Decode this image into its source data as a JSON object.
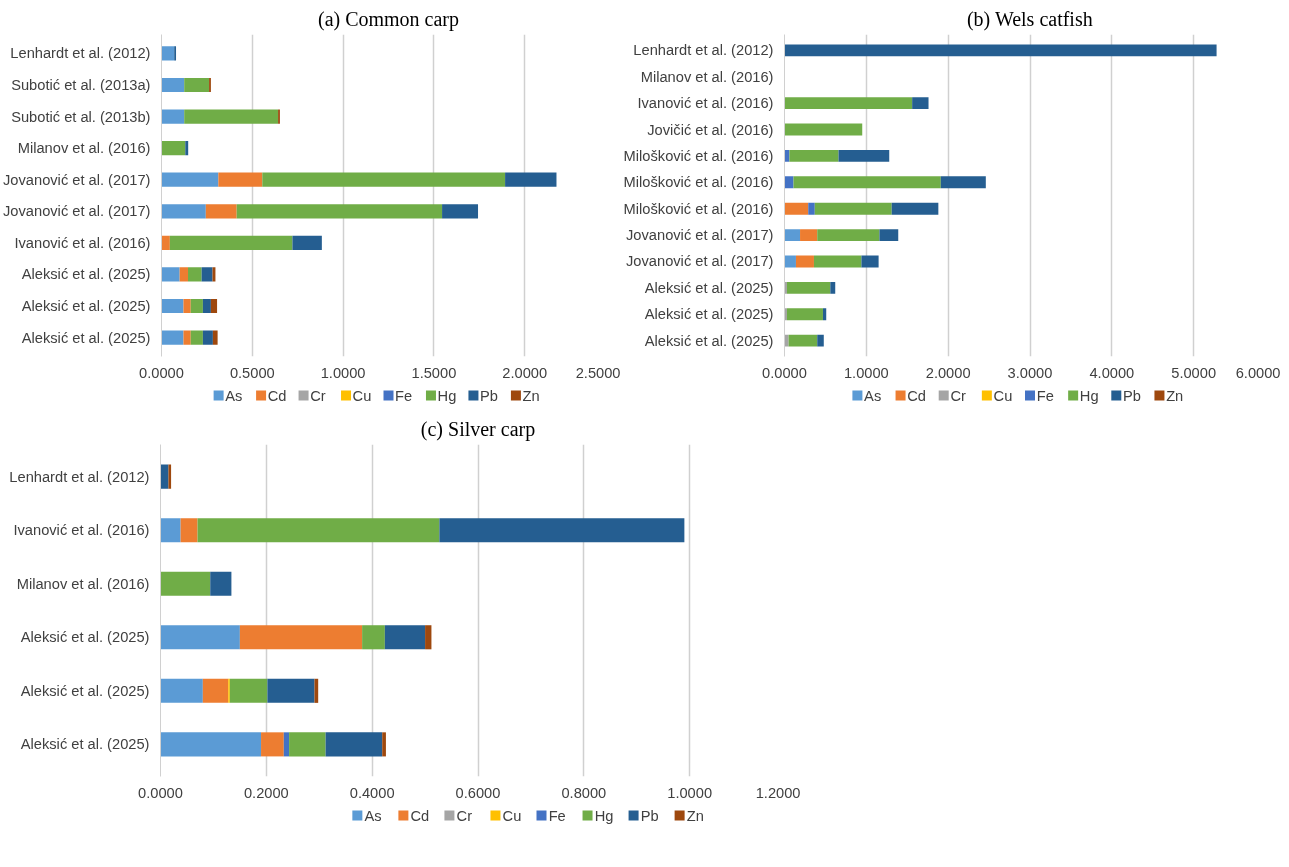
{
  "chart_data": [
    {
      "type": "bar",
      "orientation": "horizontal",
      "stacked": true,
      "title": "(a) Common carp",
      "categories": [
        "Lenhardt et al. (2012)",
        "Subotić et al. (2013a)",
        "Subotić et al. (2013b)",
        "Milanov et al. (2016)",
        "Jovanović et al. (2017)",
        "Jovanović et al. (2017)",
        "Ivanović et al. (2016)",
        "Aleksić et al. (2025)",
        "Aleksić et al. (2025)",
        "Aleksić et al. (2025)"
      ],
      "series": [
        {
          "name": "As",
          "color": "#5b9bd5",
          "values": [
            0.07,
            0.125,
            0.125,
            null,
            0.313,
            0.244,
            null,
            0.1,
            0.121,
            0.121
          ]
        },
        {
          "name": "Cd",
          "color": "#ed7d31",
          "values": [
            null,
            null,
            null,
            null,
            0.242,
            0.17,
            0.046,
            0.046,
            0.04,
            0.04
          ]
        },
        {
          "name": "Cr",
          "color": "#a5a5a5",
          "values": [
            null,
            null,
            null,
            null,
            null,
            null,
            null,
            null,
            null,
            null
          ]
        },
        {
          "name": "Cu",
          "color": "#ffc000",
          "values": [
            null,
            null,
            null,
            null,
            null,
            null,
            null,
            null,
            null,
            null
          ]
        },
        {
          "name": "Fe",
          "color": "#4472c4",
          "values": [
            null,
            null,
            null,
            null,
            null,
            null,
            null,
            null,
            null,
            null
          ]
        },
        {
          "name": "Hg",
          "color": "#70ad47",
          "values": [
            null,
            0.137,
            0.517,
            0.131,
            1.337,
            1.131,
            0.675,
            0.075,
            0.067,
            0.067
          ]
        },
        {
          "name": "Pb",
          "color": "#255e91",
          "values": [
            0.01,
            null,
            null,
            0.016,
            0.283,
            0.198,
            0.162,
            0.06,
            0.044,
            0.055
          ]
        },
        {
          "name": "Zn",
          "color": "#9e480e",
          "values": [
            null,
            0.01,
            0.01,
            null,
            null,
            null,
            null,
            0.016,
            0.034,
            0.026
          ]
        }
      ],
      "xlim": [
        0,
        2.5
      ],
      "xticks": [
        {
          "value": 0,
          "label": "0.0000"
        },
        {
          "value": 0.5,
          "label": "0.5000"
        },
        {
          "value": 1,
          "label": "1.0000"
        },
        {
          "value": 1.5,
          "label": "1.5000"
        },
        {
          "value": 2,
          "label": "2.0000"
        },
        {
          "value": 2.5,
          "label": "2.5000"
        }
      ],
      "grid": "x",
      "legend": "bottom"
    },
    {
      "type": "bar",
      "orientation": "horizontal",
      "stacked": true,
      "title": "(b) Wels catfish",
      "categories": [
        "Lenhardt et al. (2012)",
        "Milanov et al. (2016)",
        "Ivanović et al. (2016)",
        "Jovičić et al. (2016)",
        "Milošković et al. (2016)",
        "Milošković et al. (2016)",
        "Milošković et al. (2016)",
        "Jovanović et al. (2017)",
        "Jovanović et al. (2017)",
        "Aleksić et al. (2025)",
        "Aleksić et al. (2025)",
        "Aleksić et al. (2025)"
      ],
      "series": [
        {
          "name": "As",
          "color": "#5b9bd5",
          "values": [
            null,
            null,
            null,
            null,
            null,
            null,
            null,
            0.19,
            0.14,
            null,
            null,
            null
          ]
        },
        {
          "name": "Cd",
          "color": "#ed7d31",
          "values": [
            null,
            null,
            null,
            null,
            null,
            null,
            0.29,
            0.21,
            0.22,
            null,
            null,
            null
          ]
        },
        {
          "name": "Cr",
          "color": "#a5a5a5",
          "values": [
            null,
            null,
            null,
            null,
            null,
            null,
            null,
            null,
            null,
            0.03,
            0.03,
            0.05
          ]
        },
        {
          "name": "Cu",
          "color": "#ffc000",
          "values": [
            null,
            null,
            null,
            null,
            null,
            null,
            null,
            null,
            null,
            null,
            null,
            null
          ]
        },
        {
          "name": "Fe",
          "color": "#4472c4",
          "values": [
            null,
            null,
            null,
            null,
            0.06,
            0.11,
            0.08,
            null,
            null,
            null,
            null,
            null
          ]
        },
        {
          "name": "Hg",
          "color": "#70ad47",
          "values": [
            null,
            null,
            1.56,
            0.95,
            0.6,
            1.8,
            0.94,
            0.76,
            0.58,
            0.53,
            0.44,
            0.35
          ]
        },
        {
          "name": "Pb",
          "color": "#255e91",
          "values": [
            5.28,
            null,
            0.2,
            null,
            0.62,
            0.55,
            0.57,
            0.23,
            0.21,
            0.06,
            0.04,
            0.08
          ]
        },
        {
          "name": "Zn",
          "color": "#9e480e",
          "values": [
            null,
            null,
            null,
            null,
            null,
            null,
            null,
            null,
            null,
            null,
            null,
            null
          ]
        }
      ],
      "xlim": [
        0,
        6
      ],
      "xticks": [
        {
          "value": 0,
          "label": "0.0000"
        },
        {
          "value": 1,
          "label": "1.0000"
        },
        {
          "value": 2,
          "label": "2.0000"
        },
        {
          "value": 3,
          "label": "3.0000"
        },
        {
          "value": 4,
          "label": "4.0000"
        },
        {
          "value": 5,
          "label": "5.0000"
        },
        {
          "value": 6,
          "label": "6.0000"
        }
      ],
      "grid": "x",
      "legend": "bottom"
    },
    {
      "type": "bar",
      "orientation": "horizontal",
      "stacked": true,
      "title": "(c) Silver carp",
      "categories": [
        "Lenhardt et al. (2012)",
        "Ivanović et al. (2016)",
        "Milanov et al. (2016)",
        "Aleksić et al. (2025)",
        "Aleksić et al. (2025)",
        "Aleksić et al. (2025)"
      ],
      "series": [
        {
          "name": "As",
          "color": "#5b9bd5",
          "values": [
            null,
            0.038,
            null,
            0.15,
            0.08,
            0.19
          ]
        },
        {
          "name": "Cd",
          "color": "#ed7d31",
          "values": [
            null,
            0.032,
            null,
            0.231,
            0.048,
            0.043
          ]
        },
        {
          "name": "Cr",
          "color": "#a5a5a5",
          "values": [
            null,
            null,
            null,
            null,
            null,
            null
          ]
        },
        {
          "name": "Cu",
          "color": "#ffc000",
          "values": [
            null,
            null,
            null,
            null,
            0.003,
            null
          ]
        },
        {
          "name": "Fe",
          "color": "#4472c4",
          "values": [
            null,
            null,
            null,
            null,
            null,
            0.01
          ]
        },
        {
          "name": "Hg",
          "color": "#70ad47",
          "values": [
            null,
            0.457,
            0.094,
            0.043,
            0.071,
            0.069
          ]
        },
        {
          "name": "Pb",
          "color": "#255e91",
          "values": [
            0.015,
            0.463,
            0.04,
            0.076,
            0.089,
            0.107
          ]
        },
        {
          "name": "Zn",
          "color": "#9e480e",
          "values": [
            0.005,
            null,
            null,
            0.012,
            0.007,
            0.007
          ]
        }
      ],
      "xlim": [
        0,
        1.2
      ],
      "xticks": [
        {
          "value": 0,
          "label": "0.0000"
        },
        {
          "value": 0.2,
          "label": "0.2000"
        },
        {
          "value": 0.4,
          "label": "0.4000"
        },
        {
          "value": 0.6,
          "label": "0.6000"
        },
        {
          "value": 0.8,
          "label": "0.8000"
        },
        {
          "value": 1,
          "label": "1.0000"
        },
        {
          "value": 1.2,
          "label": "1.2000"
        }
      ],
      "grid": "x",
      "legend": "bottom"
    }
  ]
}
